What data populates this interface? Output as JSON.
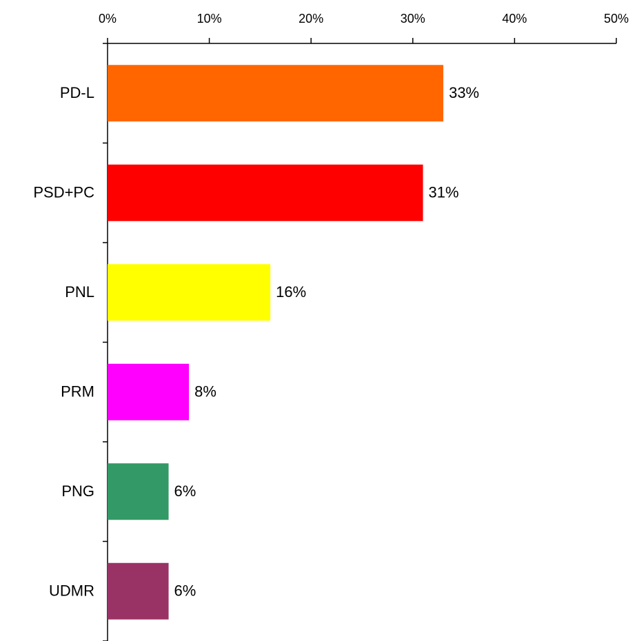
{
  "chart_data": {
    "type": "bar",
    "orientation": "horizontal",
    "categories": [
      "PD-L",
      "PSD+PC",
      "PNL",
      "PRM",
      "PNG",
      "UDMR"
    ],
    "values": [
      33,
      31,
      16,
      8,
      6,
      6
    ],
    "value_labels": [
      "33%",
      "31%",
      "16%",
      "8%",
      "6%",
      "6%"
    ],
    "colors": [
      "#ff6600",
      "#ff0000",
      "#ffff00",
      "#ff00ff",
      "#339966",
      "#993366"
    ],
    "xlim": [
      0,
      50
    ],
    "xticks": [
      {
        "value": 0,
        "label": "0%"
      },
      {
        "value": 10,
        "label": "10%"
      },
      {
        "value": 20,
        "label": "20%"
      },
      {
        "value": 30,
        "label": "30%"
      },
      {
        "value": 40,
        "label": "40%"
      },
      {
        "value": 50,
        "label": "50%"
      }
    ],
    "grid": false
  }
}
